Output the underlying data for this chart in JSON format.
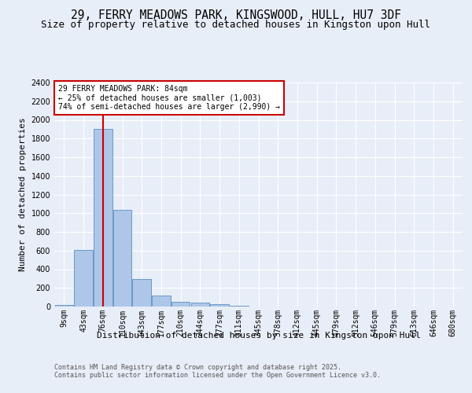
{
  "title_line1": "29, FERRY MEADOWS PARK, KINGSWOOD, HULL, HU7 3DF",
  "title_line2": "Size of property relative to detached houses in Kingston upon Hull",
  "xlabel": "Distribution of detached houses by size in Kingston upon Hull",
  "ylabel": "Number of detached properties",
  "footer": "Contains HM Land Registry data © Crown copyright and database right 2025.\nContains public sector information licensed under the Open Government Licence v3.0.",
  "categories": [
    "9sqm",
    "43sqm",
    "76sqm",
    "110sqm",
    "143sqm",
    "177sqm",
    "210sqm",
    "244sqm",
    "277sqm",
    "311sqm",
    "345sqm",
    "378sqm",
    "412sqm",
    "445sqm",
    "479sqm",
    "512sqm",
    "546sqm",
    "579sqm",
    "613sqm",
    "646sqm",
    "680sqm"
  ],
  "values": [
    15,
    605,
    1900,
    1040,
    295,
    120,
    50,
    40,
    25,
    10,
    0,
    0,
    0,
    0,
    0,
    0,
    0,
    0,
    0,
    0,
    0
  ],
  "bar_color": "#aec6e8",
  "bar_edge_color": "#5a8fc2",
  "annotation_text": "29 FERRY MEADOWS PARK: 84sqm\n← 25% of detached houses are smaller (1,003)\n74% of semi-detached houses are larger (2,990) →",
  "annotation_box_color": "#ffffff",
  "annotation_box_edge": "#cc0000",
  "red_line_color": "#cc0000",
  "bg_color": "#e8eef7",
  "plot_bg_color": "#e8eef7",
  "ylim": [
    0,
    2400
  ],
  "yticks": [
    0,
    200,
    400,
    600,
    800,
    1000,
    1200,
    1400,
    1600,
    1800,
    2000,
    2200,
    2400
  ],
  "title_fontsize": 10.5,
  "subtitle_fontsize": 9,
  "axis_label_fontsize": 8,
  "tick_fontsize": 7,
  "annotation_fontsize": 7,
  "footer_fontsize": 6
}
